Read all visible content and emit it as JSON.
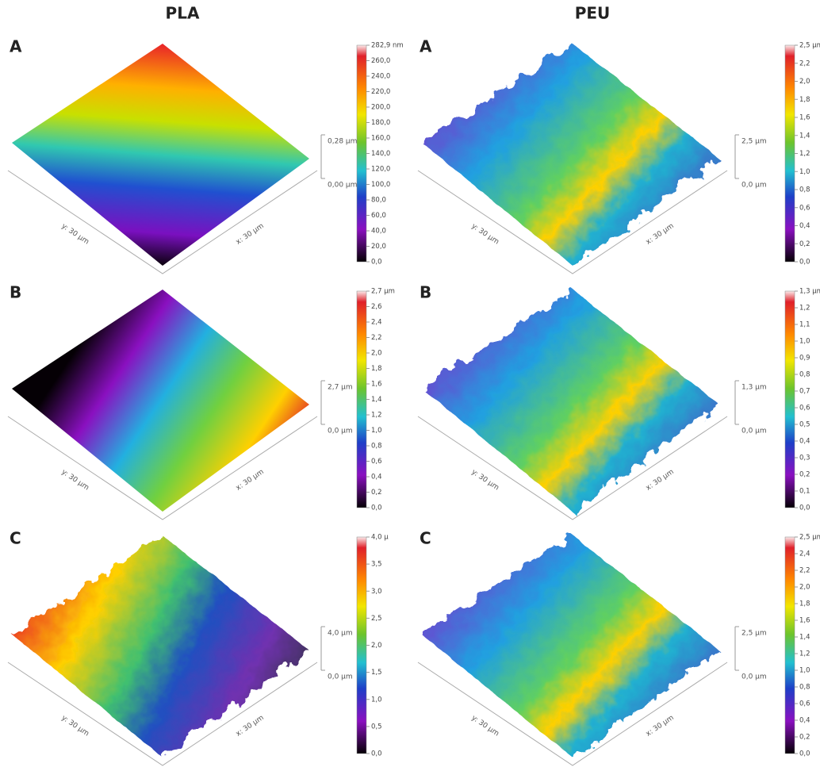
{
  "columns": [
    {
      "title": "PLA",
      "panels": [
        {
          "label": "A",
          "colorbar_ticks": [
            "282,9 nm",
            "260,0",
            "240,0",
            "220,0",
            "200,0",
            "180,0",
            "160,0",
            "140,0",
            "120,0",
            "100,0",
            "80,0",
            "60,0",
            "40,0",
            "20,0",
            "0,0"
          ],
          "z_labels": [
            "0,28 µm",
            "0,00 µm"
          ],
          "y_axis": "y: 30 µm",
          "x_axis": "x: 30 µm"
        },
        {
          "label": "B",
          "colorbar_ticks": [
            "2,7 µm",
            "2,6",
            "2,4",
            "2,2",
            "2,0",
            "1,8",
            "1,6",
            "1,4",
            "1,2",
            "1,0",
            "0,8",
            "0,6",
            "0,4",
            "0,2",
            "0,0"
          ],
          "z_labels": [
            "2,7 µm",
            "0,0 µm"
          ],
          "y_axis": "y: 30 µm",
          "x_axis": "x: 30 µm"
        },
        {
          "label": "C",
          "colorbar_ticks": [
            "4,0 µ",
            "3,5",
            "3,0",
            "2,5",
            "2,0",
            "1,5",
            "1,0",
            "0,5",
            "0,0"
          ],
          "z_labels": [
            "4,0 µm",
            "0,0 µm"
          ],
          "y_axis": "y: 30 µm",
          "x_axis": "x: 30 µm"
        }
      ]
    },
    {
      "title": "PEU",
      "panels": [
        {
          "label": "A",
          "colorbar_ticks": [
            "2,5 µm",
            "2,2",
            "2,0",
            "1,8",
            "1,6",
            "1,4",
            "1,2",
            "1,0",
            "0,8",
            "0,6",
            "0,4",
            "0,2",
            "0,0"
          ],
          "z_labels": [
            "2,5 µm",
            "0,0 µm"
          ],
          "y_axis": "y: 30 µm",
          "x_axis": "x: 30 µm"
        },
        {
          "label": "B",
          "colorbar_ticks": [
            "1,3 µm",
            "1,2",
            "1,1",
            "1,0",
            "0,9",
            "0,8",
            "0,7",
            "0,6",
            "0,5",
            "0,4",
            "0,3",
            "0,2",
            "0,1",
            "0,0"
          ],
          "z_labels": [
            "1,3 µm",
            "0,0 µm"
          ],
          "y_axis": "y: 30 µm",
          "x_axis": "x: 30 µm"
        },
        {
          "label": "C",
          "colorbar_ticks": [
            "2,5 µm",
            "2,4",
            "2,2",
            "2,0",
            "1,8",
            "1,6",
            "1,4",
            "1,2",
            "1,0",
            "0,8",
            "0,6",
            "0,4",
            "0,2",
            "0,0"
          ],
          "z_labels": [
            "2,5 µm",
            "0,0 µm"
          ],
          "y_axis": "y: 30 µm",
          "x_axis": "x: 30 µm"
        }
      ]
    }
  ]
}
